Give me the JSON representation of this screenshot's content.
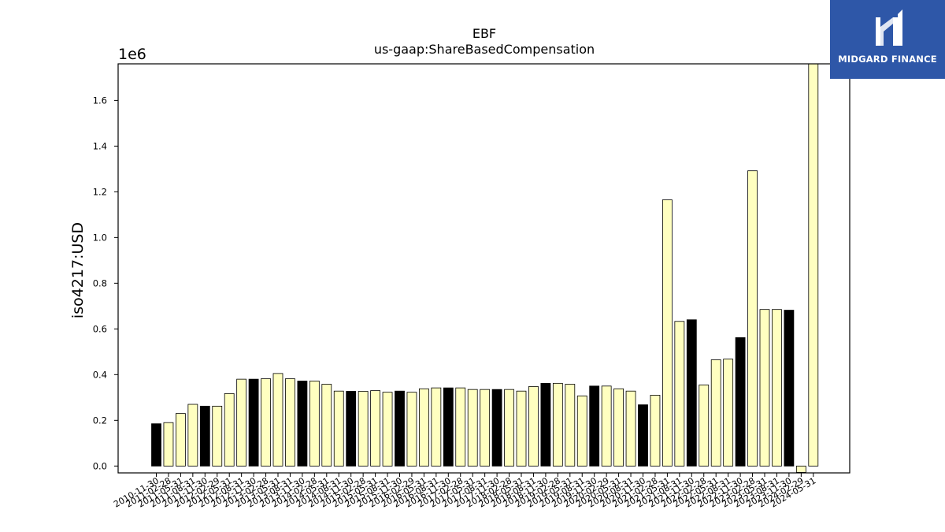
{
  "brand": {
    "name": "MIDGARD FINANCE",
    "logo_icon": "midgard-logo-icon",
    "bg_color": "#2e57a8"
  },
  "chart_data": {
    "type": "bar",
    "title": "EBF",
    "subtitle": "us-gaap:ShareBasedCompensation",
    "xlabel": "",
    "ylabel": "iso4217:USD",
    "y_scale_label": "1e6",
    "ylim": [
      -30000,
      1760000
    ],
    "yticks": [
      0.0,
      0.2,
      0.4,
      0.6,
      0.8,
      1.0,
      1.2,
      1.4,
      1.6
    ],
    "ytick_labels": [
      "0.0",
      "0.2",
      "0.4",
      "0.6",
      "0.8",
      "1.0",
      "1.2",
      "1.4",
      "1.6"
    ],
    "grid": false,
    "colors": {
      "annual": "#000000",
      "quarterly": "#ffffc0",
      "edge": "#000000"
    },
    "categories": [
      "2010-11-30",
      "2011-02-28",
      "2011-05-31",
      "2011-08-31",
      "2011-11-30",
      "2012-02-29",
      "2012-05-31",
      "2012-08-31",
      "2012-11-30",
      "2013-02-28",
      "2013-05-31",
      "2013-08-31",
      "2013-11-30",
      "2014-02-28",
      "2014-05-31",
      "2014-08-31",
      "2014-11-30",
      "2015-02-28",
      "2015-05-31",
      "2015-08-31",
      "2015-11-30",
      "2016-02-29",
      "2016-05-31",
      "2016-08-31",
      "2016-11-30",
      "2017-02-28",
      "2017-05-31",
      "2017-08-31",
      "2017-11-30",
      "2018-02-28",
      "2018-05-31",
      "2018-08-31",
      "2018-11-30",
      "2019-02-28",
      "2019-05-31",
      "2019-08-31",
      "2019-11-30",
      "2020-02-29",
      "2020-05-31",
      "2020-08-31",
      "2020-11-30",
      "2021-02-28",
      "2021-05-31",
      "2021-08-31",
      "2021-11-30",
      "2022-02-28",
      "2022-05-31",
      "2022-08-31",
      "2022-11-30",
      "2023-02-28",
      "2023-05-31",
      "2023-08-31",
      "2023-11-30",
      "2024-02-29",
      "2024-05-31"
    ],
    "values": [
      185000,
      190000,
      230000,
      270000,
      262000,
      262000,
      317000,
      380000,
      380000,
      382000,
      405000,
      382000,
      372000,
      372000,
      358000,
      328000,
      327000,
      327000,
      330000,
      323000,
      328000,
      323000,
      338000,
      342000,
      342000,
      342000,
      335000,
      335000,
      335000,
      335000,
      328000,
      348000,
      362000,
      362000,
      358000,
      307000,
      350000,
      350000,
      338000,
      328000,
      268000,
      310000,
      1165000,
      633000,
      640000,
      355000,
      465000,
      468000,
      562000,
      1292000,
      685000,
      685000,
      682000,
      -28000,
      1760000
    ],
    "annual_flags": [
      1,
      0,
      0,
      0,
      1,
      0,
      0,
      0,
      1,
      0,
      0,
      0,
      1,
      0,
      0,
      0,
      1,
      0,
      0,
      0,
      1,
      0,
      0,
      0,
      1,
      0,
      0,
      0,
      1,
      0,
      0,
      0,
      1,
      0,
      0,
      0,
      1,
      0,
      0,
      0,
      1,
      0,
      0,
      0,
      1,
      0,
      0,
      0,
      1,
      0,
      0,
      0,
      1,
      0,
      0
    ]
  }
}
